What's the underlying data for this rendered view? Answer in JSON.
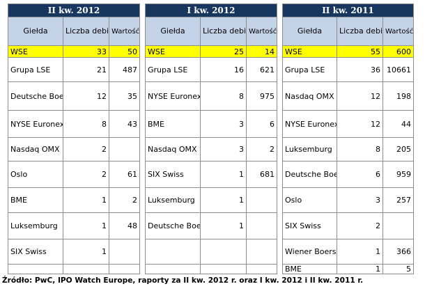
{
  "tables": [
    {
      "title": "II kw. 2012",
      "headers": {
        "exchange": "Giełda",
        "debuts": "Liczba debiutów",
        "value": "Wartość (mln EUR)"
      },
      "highlight": {
        "exchange": "WSE",
        "debuts": "33",
        "value": "50"
      },
      "rows": [
        {
          "exchange": "Grupa LSE",
          "debuts": "21",
          "value": "487"
        },
        {
          "exchange": "Deutsche Boerse",
          "debuts": "12",
          "value": "35"
        },
        {
          "exchange": "NYSE Euronext",
          "debuts": "8",
          "value": "43"
        },
        {
          "exchange": "Nasdaq OMX",
          "debuts": "2",
          "value": ""
        },
        {
          "exchange": "Oslo",
          "debuts": "2",
          "value": "61"
        },
        {
          "exchange": "BME",
          "debuts": "1",
          "value": "2"
        },
        {
          "exchange": "Luksemburg",
          "debuts": "1",
          "value": "48"
        },
        {
          "exchange": "SIX Swiss",
          "debuts": "1",
          "value": ""
        },
        {
          "exchange": "",
          "debuts": "",
          "value": ""
        }
      ]
    },
    {
      "title": "I kw. 2012",
      "headers": {
        "exchange": "Giełda",
        "debuts": "Liczba debiutów",
        "value": "Wartość (mln EUR)"
      },
      "highlight": {
        "exchange": "WSE",
        "debuts": "25",
        "value": "14"
      },
      "rows": [
        {
          "exchange": "Grupa LSE",
          "debuts": "16",
          "value": "621"
        },
        {
          "exchange": "NYSE Euronext",
          "debuts": "8",
          "value": "975"
        },
        {
          "exchange": "BME",
          "debuts": "3",
          "value": "6"
        },
        {
          "exchange": "Nasdaq OMX",
          "debuts": "3",
          "value": "2"
        },
        {
          "exchange": "SIX Swiss",
          "debuts": "1",
          "value": "681"
        },
        {
          "exchange": "Luksemburg",
          "debuts": "1",
          "value": ""
        },
        {
          "exchange": "Deutsche Boerse",
          "debuts": "1",
          "value": ""
        },
        {
          "exchange": "",
          "debuts": "",
          "value": ""
        },
        {
          "exchange": "",
          "debuts": "",
          "value": ""
        }
      ]
    },
    {
      "title": "II kw. 2011",
      "headers": {
        "exchange": "Giełda",
        "debuts": "Liczba debiutów",
        "value": "Wartość (mln EUR)"
      },
      "highlight": {
        "exchange": "WSE",
        "debuts": "55",
        "value": "600"
      },
      "rows": [
        {
          "exchange": "Grupa LSE",
          "debuts": "36",
          "value": "10661"
        },
        {
          "exchange": "Nasdaq OMX",
          "debuts": "12",
          "value": "198"
        },
        {
          "exchange": "NYSE Euronext",
          "debuts": "12",
          "value": "44"
        },
        {
          "exchange": "Luksemburg",
          "debuts": "8",
          "value": "205"
        },
        {
          "exchange": "Deutsche Boerse",
          "debuts": "6",
          "value": "959"
        },
        {
          "exchange": "Oslo",
          "debuts": "3",
          "value": "257"
        },
        {
          "exchange": "SIX Swiss",
          "debuts": "2",
          "value": ""
        },
        {
          "exchange": "Wiener Boerse",
          "debuts": "1",
          "value": "366"
        },
        {
          "exchange": "BME",
          "debuts": "1",
          "value": "5"
        }
      ]
    }
  ],
  "source": "Źródło: PwC, IPO Watch Europe, raporty za II kw. 2012 r. oraz I kw. 2012 i II kw. 2011 r."
}
